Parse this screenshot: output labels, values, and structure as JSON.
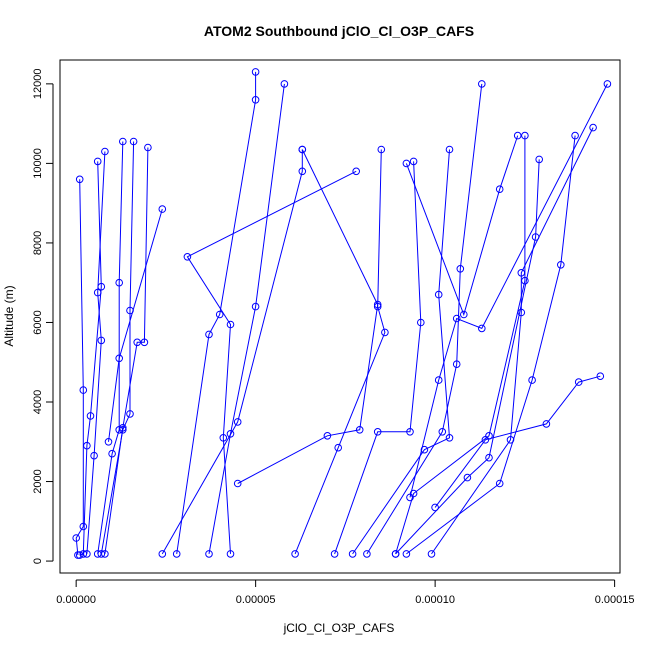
{
  "chart_data": {
    "type": "scatter",
    "title": "ATOM2 Southbound jClO_Cl_O3P_CAFS",
    "xlabel": "jClO_Cl_O3P_CAFS",
    "ylabel": "Altitude (m)",
    "xlim": [
      -4.5e-06,
      0.0001515
    ],
    "ylim": [
      -300,
      12600
    ],
    "xticks": [
      {
        "value": 0,
        "label": "0.00000"
      },
      {
        "value": 5e-05,
        "label": "0.00005"
      },
      {
        "value": 0.0001,
        "label": "0.00010"
      },
      {
        "value": 0.00015,
        "label": "0.00015"
      }
    ],
    "yticks": [
      {
        "value": 0,
        "label": "0"
      },
      {
        "value": 2000,
        "label": "2000"
      },
      {
        "value": 4000,
        "label": "4000"
      },
      {
        "value": 6000,
        "label": "6000"
      },
      {
        "value": 8000,
        "label": "8000"
      },
      {
        "value": 10000,
        "label": "10000"
      },
      {
        "value": 12000,
        "label": "12000"
      }
    ],
    "color": "#0000ff",
    "grid": false,
    "legend": "none",
    "series": [
      {
        "x": [
          1e-06,
          2e-06,
          2e-06,
          0.0,
          5e-07
        ],
        "y": [
          9600,
          4300,
          870,
          580,
          150
        ]
      },
      {
        "x": [
          6e-06,
          7e-06,
          4e-06,
          3e-06,
          2e-06,
          1e-06
        ],
        "y": [
          10050,
          6900,
          3650,
          2900,
          180,
          150
        ]
      },
      {
        "x": [
          8e-06,
          6e-06,
          7e-06,
          5e-06,
          3e-06
        ],
        "y": [
          10300,
          6750,
          5550,
          2650,
          180
        ]
      },
      {
        "x": [
          1.3e-05,
          1.2e-05,
          1.2e-05,
          1e-05,
          6e-06
        ],
        "y": [
          10550,
          7000,
          3300,
          2700,
          180
        ]
      },
      {
        "x": [
          1.6e-05,
          1.5e-05,
          1.5e-05,
          1.3e-05,
          7e-06
        ],
        "y": [
          10550,
          6300,
          3700,
          3300,
          180
        ]
      },
      {
        "x": [
          2e-05,
          1.9e-05,
          1.7e-05,
          1.3e-05,
          8e-06
        ],
        "y": [
          10400,
          5500,
          5500,
          3350,
          180
        ]
      },
      {
        "x": [
          2.4e-05,
          1.2e-05,
          9e-06
        ],
        "y": [
          8850,
          5100,
          3000
        ]
      },
      {
        "x": [
          5e-05,
          5e-05,
          4e-05,
          3.7e-05,
          2.8e-05
        ],
        "y": [
          12300,
          11600,
          6200,
          5700,
          180
        ]
      },
      {
        "x": [
          5.8e-05,
          5e-05,
          4.3e-05,
          3.7e-05
        ],
        "y": [
          12000,
          6400,
          3200,
          180
        ]
      },
      {
        "x": [
          6.3e-05,
          6.3e-05,
          4.5e-05,
          2.4e-05
        ],
        "y": [
          10350,
          9800,
          3500,
          180
        ]
      },
      {
        "x": [
          7.8e-05,
          3.1e-05,
          4.3e-05,
          4.1e-05,
          4.3e-05
        ],
        "y": [
          9800,
          7650,
          5950,
          3100,
          180
        ]
      },
      {
        "x": [
          8.5e-05,
          8.4e-05,
          8.6e-05,
          7.3e-05,
          6.1e-05
        ],
        "y": [
          10350,
          6400,
          5750,
          2850,
          180
        ]
      },
      {
        "x": [
          9.4e-05,
          9.6e-05,
          9.3e-05,
          8.4e-05,
          7.2e-05
        ],
        "y": [
          10050,
          6000,
          3250,
          3250,
          180
        ]
      },
      {
        "x": [
          0.000104,
          0.000101,
          0.000104,
          9.7e-05,
          7.7e-05
        ],
        "y": [
          10350,
          6700,
          3100,
          2800,
          180
        ]
      },
      {
        "x": [
          0.000113,
          0.000107,
          0.000106,
          0.000102,
          8.1e-05
        ],
        "y": [
          12000,
          7350,
          4950,
          3250,
          180
        ]
      },
      {
        "x": [
          0.000125,
          0.000125,
          0.000115,
          9.4e-05,
          8.9e-05
        ],
        "y": [
          10700,
          7050,
          3150,
          1700,
          180
        ]
      },
      {
        "x": [
          0.000129,
          0.000128,
          0.000115,
          0.000109,
          8.9e-05
        ],
        "y": [
          10100,
          8150,
          2600,
          2100,
          180
        ]
      },
      {
        "x": [
          0.000139,
          0.000135,
          0.000127,
          0.000118,
          9.2e-05
        ],
        "y": [
          10700,
          7450,
          4550,
          1950,
          180
        ]
      },
      {
        "x": [
          0.000144,
          0.000124,
          0.000124,
          0.000121,
          9.9e-05
        ],
        "y": [
          10900,
          7250,
          6250,
          3050,
          180
        ]
      },
      {
        "x": [
          0.000148,
          0.000113,
          0.000106,
          0.000101,
          9.3e-05
        ],
        "y": [
          12000,
          5850,
          6100,
          4550,
          1600
        ]
      },
      {
        "x": [
          0.000146,
          0.00014,
          0.000131,
          0.000114,
          0.0001
        ],
        "y": [
          4650,
          4500,
          3450,
          3050,
          1350
        ]
      },
      {
        "x": [
          9.2e-05,
          0.000108,
          0.000118,
          0.000123
        ],
        "y": [
          10000,
          6200,
          9350,
          10700
        ]
      },
      {
        "x": [
          6.3e-05,
          8.4e-05,
          7.9e-05,
          7e-05,
          4.5e-05
        ],
        "y": [
          10350,
          6450,
          3300,
          3150,
          1950
        ]
      }
    ]
  }
}
